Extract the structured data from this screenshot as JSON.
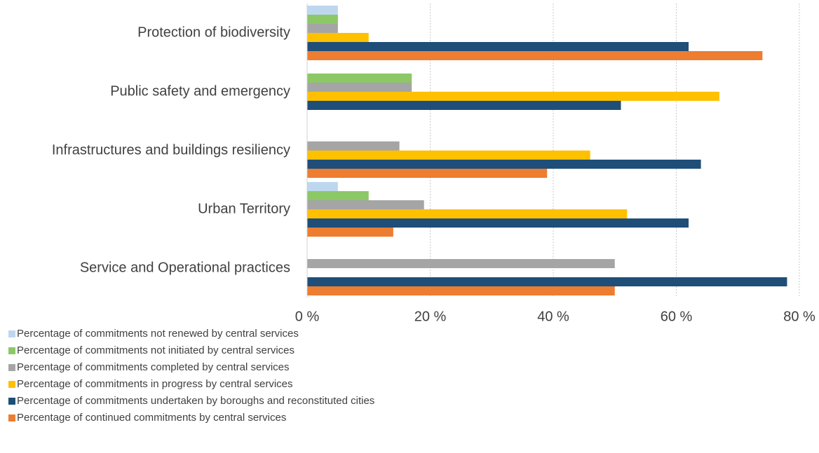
{
  "chart_data": {
    "type": "hbar",
    "categories": [
      "Protection of biodiversity",
      "Public safety and emergency",
      "Infrastructures and buildings resiliency",
      "Urban Territory",
      "Service and Operational practices"
    ],
    "series": [
      {
        "name": "Percentage of commitments not renewed by central services",
        "color": "#bdd7ee",
        "values": [
          5,
          0,
          0,
          5,
          0
        ]
      },
      {
        "name": "Percentage of commitments not initiated by central services",
        "color": "#8cc866",
        "values": [
          5,
          17,
          0,
          10,
          0
        ]
      },
      {
        "name": "Percentage of commitments completed by central services",
        "color": "#a5a5a5",
        "values": [
          5,
          17,
          15,
          19,
          50
        ]
      },
      {
        "name": "Percentage of commitments in progress by central services",
        "color": "#ffc000",
        "values": [
          10,
          67,
          46,
          52,
          0
        ]
      },
      {
        "name": "Percentage of commitments undertaken by boroughs and reconstituted cities",
        "color": "#1f4e79",
        "values": [
          62,
          51,
          64,
          62,
          78
        ]
      },
      {
        "name": "Percentage of continued commitments by central services",
        "color": "#ed7d31",
        "values": [
          74,
          0,
          39,
          14,
          50
        ]
      }
    ],
    "xlim": [
      0,
      80
    ],
    "xticks": [
      {
        "value": 0,
        "label": "0 %"
      },
      {
        "value": 20,
        "label": "20 %"
      },
      {
        "value": 40,
        "label": "40 %"
      },
      {
        "value": 60,
        "label": "60 %"
      },
      {
        "value": 80,
        "label": "80 %"
      }
    ],
    "grid": true,
    "legend": "bottom"
  }
}
